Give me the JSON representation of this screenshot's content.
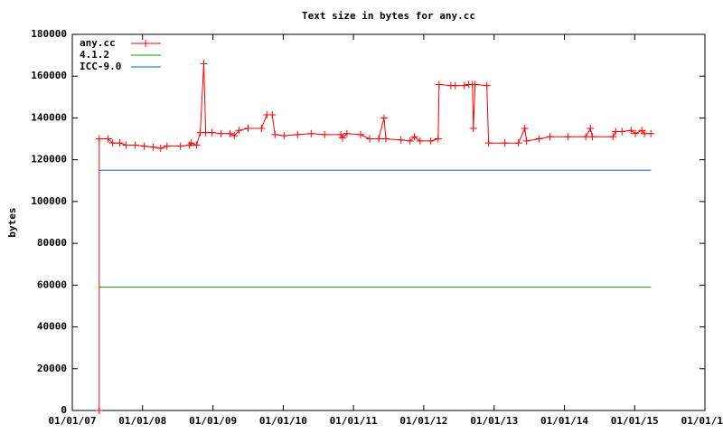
{
  "chart_data": {
    "type": "line",
    "title": "Text size in bytes for any.cc",
    "ylabel": "bytes",
    "xlim": [
      "2007-01-01",
      "2016-01-01"
    ],
    "xticks": [
      {
        "value": "2007-01-01",
        "label": "01/01/07"
      },
      {
        "value": "2008-01-01",
        "label": "01/01/08"
      },
      {
        "value": "2009-01-01",
        "label": "01/01/09"
      },
      {
        "value": "2010-01-01",
        "label": "01/01/10"
      },
      {
        "value": "2011-01-01",
        "label": "01/01/11"
      },
      {
        "value": "2012-01-01",
        "label": "01/01/12"
      },
      {
        "value": "2013-01-01",
        "label": "01/01/13"
      },
      {
        "value": "2014-01-01",
        "label": "01/01/14"
      },
      {
        "value": "2015-01-01",
        "label": "01/01/15"
      },
      {
        "value": "2016-01-01",
        "label": "01/01/1"
      }
    ],
    "ylim": [
      0,
      180000
    ],
    "yticks": [
      0,
      20000,
      40000,
      60000,
      80000,
      100000,
      120000,
      140000,
      160000,
      180000
    ],
    "legend": "top-left",
    "series": [
      {
        "name": "any.cc",
        "color": "#ff0000",
        "markers": true,
        "x": [
          "2007-05-21",
          "2007-05-21",
          "2007-07-06",
          "2007-07-30",
          "2007-09-05",
          "2007-10-08",
          "2007-11-24",
          "2008-01-10",
          "2008-02-26",
          "2008-04-04",
          "2008-05-07",
          "2008-07-16",
          "2008-09-01",
          "2008-09-10",
          "2008-10-08",
          "2008-10-27",
          "2008-11-14",
          "2008-11-24",
          "2008-12-27",
          "2009-02-12",
          "2009-03-30",
          "2009-04-22",
          "2009-05-16",
          "2009-07-02",
          "2009-09-10",
          "2009-10-08",
          "2009-11-05",
          "2009-11-19",
          "2010-01-05",
          "2010-03-16",
          "2010-05-26",
          "2010-08-04",
          "2010-10-27",
          "2010-11-05",
          "2010-11-28",
          "2011-02-07",
          "2011-03-26",
          "2011-05-12",
          "2011-06-09",
          "2011-06-18",
          "2011-09-05",
          "2011-10-22",
          "2011-11-14",
          "2011-12-13",
          "2012-02-07",
          "2012-03-16",
          "2012-03-21",
          "2012-05-21",
          "2012-06-13",
          "2012-07-30",
          "2012-08-22",
          "2012-09-10",
          "2012-09-15",
          "2012-09-24",
          "2012-11-24",
          "2012-12-03",
          "2013-02-26",
          "2013-05-07",
          "2013-06-09",
          "2013-06-18",
          "2013-08-22",
          "2013-10-18",
          "2014-01-19",
          "2014-04-22",
          "2014-05-16",
          "2014-05-26",
          "2014-09-10",
          "2014-09-24",
          "2014-10-27",
          "2014-12-13",
          "2015-01-05",
          "2015-02-07",
          "2015-02-21",
          "2015-03-26"
        ],
        "values": [
          0,
          130000,
          130000,
          128000,
          128000,
          127000,
          127000,
          126500,
          126000,
          125500,
          126500,
          126500,
          127000,
          128000,
          127000,
          133000,
          166000,
          133000,
          133000,
          132500,
          132500,
          131500,
          134000,
          135000,
          135000,
          141500,
          141500,
          132000,
          131500,
          132000,
          132500,
          132000,
          132000,
          130500,
          132500,
          132000,
          130000,
          130000,
          140000,
          130000,
          129500,
          129000,
          131000,
          129000,
          129000,
          130000,
          156000,
          155500,
          155500,
          155500,
          156000,
          156000,
          135000,
          156000,
          155500,
          128000,
          128000,
          128000,
          135000,
          129000,
          130000,
          131000,
          131000,
          131000,
          135000,
          131000,
          131000,
          133500,
          133500,
          134000,
          132500,
          134000,
          132500,
          132500
        ]
      },
      {
        "name": "4.1.2",
        "color": "#00a000",
        "x": [
          "2007-05-21",
          "2015-03-26"
        ],
        "values": [
          59000,
          59000
        ]
      },
      {
        "name": "ICC-9.0",
        "color": "#0066cc",
        "x": [
          "2007-05-21",
          "2015-03-26"
        ],
        "values": [
          115000,
          115000
        ]
      }
    ]
  }
}
